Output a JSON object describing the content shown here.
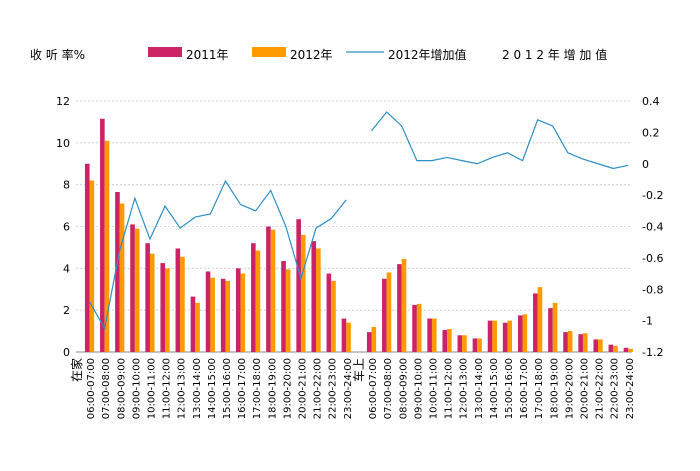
{
  "legend": {
    "ylabel_left": "收 听 率%",
    "series1": "2011年",
    "series2": "2012年",
    "series3": "2012年增加值",
    "ylabel_right": "2 0 1 2 年 增 加 值"
  },
  "colors": {
    "s2011": "#cc2266",
    "s2012": "#ff9900",
    "increase": "#2e8fc4",
    "grid": "#cccccc"
  },
  "chart_data": {
    "type": "bar",
    "groups": [
      {
        "name": "在家",
        "categories": [
          "06:00-07:00",
          "07:00-08:00",
          "08:00-09:00",
          "09:00-10:00",
          "10:00-11:00",
          "11:00-12:00",
          "12:00-13:00",
          "13:00-14:00",
          "14:00-15:00",
          "15:00-16:00",
          "16:00-17:00",
          "17:00-18:00",
          "18:00-19:00",
          "19:00-20:00",
          "20:00-21:00",
          "21:00-22:00",
          "22:00-23:00",
          "23:00-24:00"
        ],
        "series": [
          {
            "name": "2011年",
            "values": [
              9.0,
              11.15,
              7.65,
              6.1,
              5.2,
              4.25,
              4.95,
              2.65,
              3.85,
              3.5,
              4.0,
              5.2,
              6.0,
              4.35,
              6.35,
              5.3,
              3.75,
              1.6
            ]
          },
          {
            "name": "2012年",
            "values": [
              8.2,
              10.1,
              7.1,
              5.9,
              4.7,
              4.0,
              4.55,
              2.35,
              3.55,
              3.4,
              3.75,
              4.85,
              5.85,
              3.95,
              5.6,
              4.95,
              3.4,
              1.4
            ]
          },
          {
            "name": "2012年增加值",
            "values": [
              -0.88,
              -1.05,
              -0.55,
              -0.22,
              -0.48,
              -0.27,
              -0.41,
              -0.34,
              -0.32,
              -0.11,
              -0.26,
              -0.3,
              -0.17,
              -0.4,
              -0.73,
              -0.41,
              -0.35,
              -0.23
            ]
          }
        ]
      },
      {
        "name": "车上",
        "categories": [
          "06:00-07:00",
          "07:00-08:00",
          "08:00-09:00",
          "09:00-10:00",
          "10:00-11:00",
          "11:00-12:00",
          "12:00-13:00",
          "13:00-14:00",
          "14:00-15:00",
          "15:00-16:00",
          "16:00-17:00",
          "17:00-18:00",
          "18:00-19:00",
          "19:00-20:00",
          "20:00-21:00",
          "21:00-22:00",
          "22:00-23:00",
          "23:00-24:00"
        ],
        "series": [
          {
            "name": "2011年",
            "values": [
              0.95,
              3.5,
              4.2,
              2.25,
              1.6,
              1.05,
              0.8,
              0.65,
              1.5,
              1.4,
              1.75,
              2.8,
              2.1,
              0.95,
              0.85,
              0.6,
              0.35,
              0.2
            ]
          },
          {
            "name": "2012年",
            "values": [
              1.2,
              3.8,
              4.45,
              2.3,
              1.6,
              1.1,
              0.8,
              0.65,
              1.5,
              1.5,
              1.8,
              3.1,
              2.35,
              1.0,
              0.9,
              0.6,
              0.3,
              0.15
            ]
          },
          {
            "name": "2012年增加值",
            "values": [
              0.21,
              0.33,
              0.24,
              0.02,
              0.02,
              0.04,
              0.02,
              0.0,
              0.04,
              0.07,
              0.02,
              0.28,
              0.24,
              0.07,
              0.03,
              0.0,
              -0.03,
              -0.01
            ]
          }
        ]
      }
    ],
    "y_left": {
      "min": 0,
      "max": 12,
      "ticks": [
        "0",
        "2",
        "4",
        "6",
        "8",
        "10",
        "12"
      ]
    },
    "y_right": {
      "min": -1.2,
      "max": 0.4,
      "ticks": [
        "-1.2",
        "-1",
        "-0.8",
        "-0.6",
        "-0.4",
        "-0.2",
        "0",
        "0.2",
        "0.4"
      ]
    },
    "grid": true,
    "legend_position": "top"
  }
}
